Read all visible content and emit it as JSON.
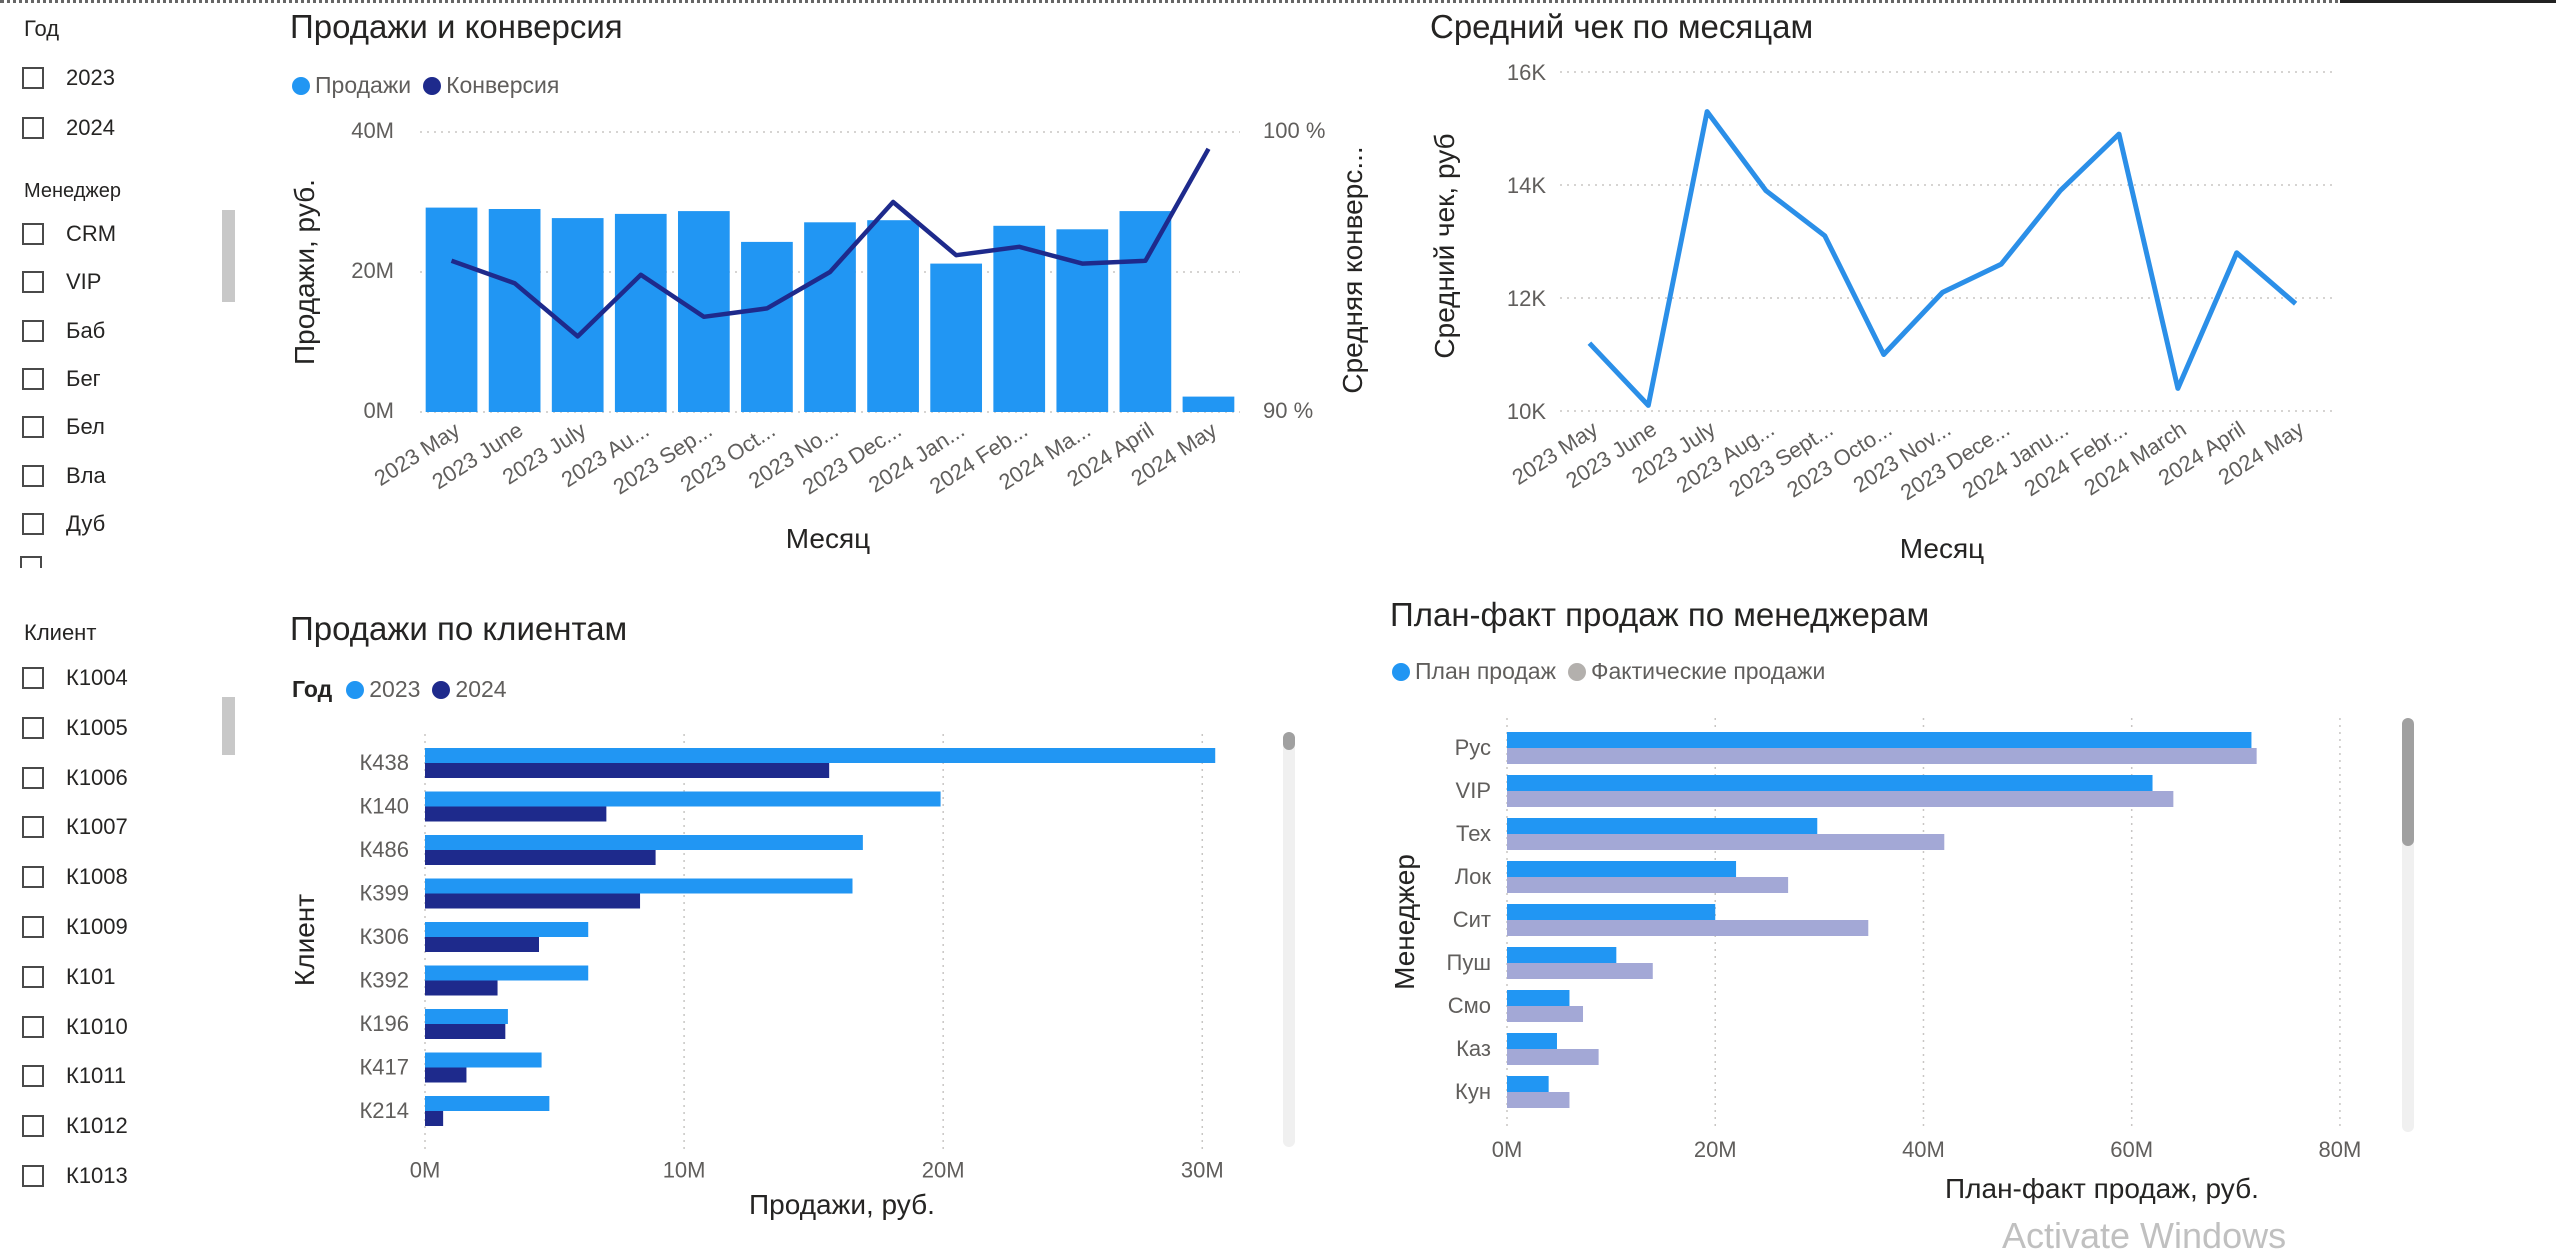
{
  "colors": {
    "primary": "#2196f3",
    "dark": "#1e2a8c",
    "gray_bar": "#a3a8d6",
    "line_avg": "#2b8fe8"
  },
  "year_slicer": {
    "title": "Год",
    "items": [
      "2023",
      "2024"
    ]
  },
  "manager_slicer": {
    "title": "Менеджер",
    "items": [
      "CRM",
      "VIP",
      "Баб",
      "Бег",
      "Бел",
      "Вла",
      "Дуб"
    ]
  },
  "client_slicer": {
    "title": "Клиент",
    "items": [
      "К1004",
      "К1005",
      "К1006",
      "К1007",
      "К1008",
      "К1009",
      "К101",
      "К1010",
      "К1011",
      "К1012",
      "К1013"
    ]
  },
  "chart1": {
    "title": "Продажи и конверсия",
    "legend": [
      "Продажи",
      "Конверсия"
    ],
    "y_ticks": [
      "40M",
      "20M",
      "0M"
    ],
    "y2_ticks": [
      "100 %",
      "90 %"
    ],
    "ylabel": "Продажи, руб.",
    "y2label": "Средняя конверс...",
    "xlabel": "Месяц"
  },
  "chart2": {
    "title": "Средний чек по месяцам",
    "y_ticks": [
      "16K",
      "14K",
      "12K",
      "10K"
    ],
    "ylabel": "Средний чек, руб",
    "xlabel": "Месяц"
  },
  "chart3": {
    "title": "Продажи по клиентам",
    "legend_title": "Год",
    "legend": [
      "2023",
      "2024"
    ],
    "x_ticks": [
      "0M",
      "10M",
      "20M",
      "30M"
    ],
    "ylabel": "Клиент",
    "xlabel": "Продажи, руб."
  },
  "chart4": {
    "title": "План-факт продаж по менеджерам",
    "legend": [
      "План продаж",
      "Фактические продажи"
    ],
    "x_ticks": [
      "0M",
      "20M",
      "40M",
      "60M",
      "80M"
    ],
    "ylabel": "Менеджер",
    "xlabel": "План-факт продаж, руб."
  },
  "chart_data": [
    {
      "type": "bar",
      "title": "Продажи и конверсия",
      "categories": [
        "2023 May",
        "2023 June",
        "2023 July",
        "2023 Au...",
        "2023 Sep...",
        "2023 Oct...",
        "2023 No...",
        "2023 Dec...",
        "2024 Jan...",
        "2024 Feb...",
        "2024 Ma...",
        "2024 April",
        "2024 May"
      ],
      "series": [
        {
          "name": "Продажи",
          "axis": "left",
          "type": "bar",
          "values": [
            29.2,
            29.0,
            27.7,
            28.3,
            28.7,
            24.3,
            27.1,
            27.4,
            21.2,
            26.6,
            26.1,
            28.7,
            2.2
          ]
        },
        {
          "name": "Конверсия",
          "axis": "right",
          "type": "line",
          "values": [
            95.4,
            94.6,
            92.7,
            94.9,
            93.4,
            93.7,
            95.0,
            97.5,
            95.6,
            95.9,
            95.3,
            95.4,
            99.4
          ]
        }
      ],
      "xlabel": "Месяц",
      "ylabel": "Продажи, руб.",
      "y2label": "Средняя конверс...",
      "ylim": [
        0,
        40
      ],
      "y2lim": [
        90,
        100
      ],
      "grid": true,
      "legend": "top-left"
    },
    {
      "type": "line",
      "title": "Средний чек по месяцам",
      "categories": [
        "2023 May",
        "2023 June",
        "2023 July",
        "2023 Aug...",
        "2023 Sept...",
        "2023 Octo...",
        "2023 Nov...",
        "2023 Dece...",
        "2024 Janu...",
        "2024 Febr...",
        "2024 March",
        "2024 April",
        "2024 May"
      ],
      "values": [
        11200,
        10100,
        15300,
        13900,
        13100,
        11000,
        12100,
        12600,
        13900,
        14900,
        10400,
        12800,
        11900
      ],
      "xlabel": "Месяц",
      "ylabel": "Средний чек, руб",
      "ylim": [
        10000,
        16000
      ],
      "grid": true
    },
    {
      "type": "bar",
      "orientation": "horizontal",
      "title": "Продажи по клиентам",
      "categories": [
        "К438",
        "К140",
        "К486",
        "К399",
        "К306",
        "К392",
        "К196",
        "К417",
        "К214"
      ],
      "series": [
        {
          "name": "2023",
          "values": [
            30.5,
            19.9,
            16.9,
            16.5,
            6.3,
            6.3,
            3.2,
            4.5,
            4.8
          ]
        },
        {
          "name": "2024",
          "values": [
            15.6,
            7.0,
            8.9,
            8.3,
            4.4,
            2.8,
            3.1,
            1.6,
            0.7
          ]
        }
      ],
      "xlabel": "Продажи, руб.",
      "ylabel": "Клиент",
      "xlim": [
        0,
        33
      ],
      "grid": true,
      "legend": "top-left"
    },
    {
      "type": "bar",
      "orientation": "horizontal",
      "title": "План-факт продаж по менеджерам",
      "categories": [
        "Рус",
        "VIP",
        "Тех",
        "Лок",
        "Сит",
        "Пуш",
        "Смо",
        "Каз",
        "Кун"
      ],
      "series": [
        {
          "name": "План продаж",
          "values": [
            71.5,
            62.0,
            29.8,
            22.0,
            20.0,
            10.5,
            6.0,
            4.8,
            4.0
          ]
        },
        {
          "name": "Фактические продажи",
          "values": [
            72.0,
            64.0,
            42.0,
            27.0,
            34.7,
            14.0,
            7.3,
            8.8,
            6.0
          ]
        }
      ],
      "xlabel": "План-факт продаж, руб.",
      "ylabel": "Менеджер",
      "xlim": [
        0,
        85
      ],
      "grid": true,
      "legend": "top-left"
    }
  ],
  "watermark": "Activate Windows"
}
